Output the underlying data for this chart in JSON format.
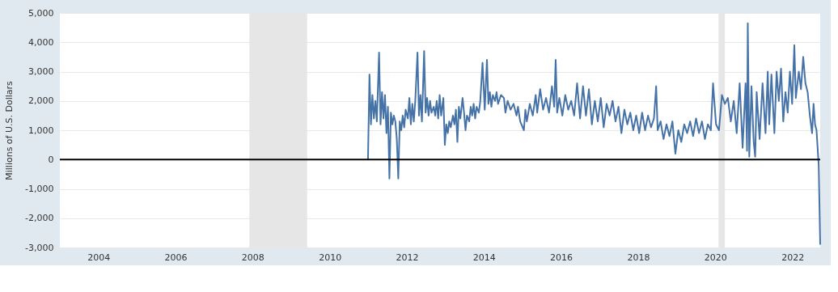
{
  "chart_data": {
    "type": "line",
    "ylabel": "Millions of U.S. Dollars",
    "xlim": [
      "2003-01-01",
      "2022-09-21"
    ],
    "xticks": [
      "2004",
      "2006",
      "2008",
      "2010",
      "2012",
      "2014",
      "2016",
      "2018",
      "2020",
      "2022"
    ],
    "ylim": [
      -3000,
      5000
    ],
    "yticks": [
      {
        "value": -3000,
        "label": "-3,000"
      },
      {
        "value": -2000,
        "label": "-2,000"
      },
      {
        "value": -1000,
        "label": "-1,000"
      },
      0,
      {
        "value": 1000,
        "label": "1,000"
      },
      {
        "value": 2000,
        "label": "2,000"
      },
      {
        "value": 3000,
        "label": "3,000"
      },
      {
        "value": 4000,
        "label": "4,000"
      },
      {
        "value": 5000,
        "label": "5,000"
      }
    ],
    "grid": "y",
    "bands": [
      {
        "axis": "x",
        "from": "2007-12-01",
        "to": "2009-06-01",
        "color": "#e6e6e6"
      },
      {
        "axis": "x",
        "from": "2020-02-01",
        "to": "2020-04-01",
        "color": "#e6e6e6"
      }
    ],
    "ref_lines": [
      {
        "axis": "y",
        "value": 0,
        "color": "#000000"
      }
    ],
    "series": [
      {
        "color": "#4572a7",
        "x": [
          "2010-12-29",
          "2011-01-12",
          "2011-01-26",
          "2011-02-09",
          "2011-02-23",
          "2011-03-09",
          "2011-03-23",
          "2011-04-13",
          "2011-04-27",
          "2011-05-11",
          "2011-05-25",
          "2011-06-08",
          "2011-06-22",
          "2011-07-06",
          "2011-07-20",
          "2011-08-03",
          "2011-08-17",
          "2011-08-31",
          "2011-09-14",
          "2011-09-28",
          "2011-10-12",
          "2011-10-26",
          "2011-11-09",
          "2011-11-23",
          "2011-12-07",
          "2011-12-21",
          "2012-01-11",
          "2012-01-25",
          "2012-02-08",
          "2012-02-22",
          "2012-03-07",
          "2012-03-21",
          "2012-04-11",
          "2012-04-25",
          "2012-05-09",
          "2012-05-23",
          "2012-06-13",
          "2012-06-27",
          "2012-07-11",
          "2012-07-25",
          "2012-08-08",
          "2012-08-22",
          "2012-09-12",
          "2012-09-26",
          "2012-10-10",
          "2012-10-24",
          "2012-11-07",
          "2012-11-21",
          "2012-12-12",
          "2012-12-26",
          "2013-01-09",
          "2013-01-23",
          "2013-02-06",
          "2013-02-20",
          "2013-03-13",
          "2013-03-27",
          "2013-04-10",
          "2013-04-24",
          "2013-05-08",
          "2013-05-22",
          "2013-06-12",
          "2013-06-26",
          "2013-07-10",
          "2013-07-24",
          "2013-08-14",
          "2013-08-28",
          "2013-09-11",
          "2013-09-25",
          "2013-10-09",
          "2013-10-23",
          "2013-11-13",
          "2013-11-27",
          "2013-12-18",
          "2014-01-08",
          "2014-01-29",
          "2014-02-12",
          "2014-02-26",
          "2014-03-12",
          "2014-03-26",
          "2014-04-16",
          "2014-04-30",
          "2014-05-14",
          "2014-06-11",
          "2014-07-09",
          "2014-07-23",
          "2014-08-13",
          "2014-09-10",
          "2014-10-08",
          "2014-11-05",
          "2014-11-19",
          "2014-12-10",
          "2015-01-14",
          "2015-01-28",
          "2015-02-11",
          "2015-03-11",
          "2015-04-08",
          "2015-05-06",
          "2015-05-20",
          "2015-06-17",
          "2015-07-15",
          "2015-08-12",
          "2015-09-09",
          "2015-10-07",
          "2015-10-28",
          "2015-11-11",
          "2015-11-25",
          "2015-12-16",
          "2016-01-13",
          "2016-02-10",
          "2016-03-09",
          "2016-04-06",
          "2016-05-04",
          "2016-06-01",
          "2016-06-29",
          "2016-07-27",
          "2016-08-24",
          "2016-09-21",
          "2016-10-19",
          "2016-11-16",
          "2016-12-14",
          "2017-01-11",
          "2017-02-08",
          "2017-03-08",
          "2017-04-05",
          "2017-05-03",
          "2017-05-31",
          "2017-06-28",
          "2017-07-26",
          "2017-08-23",
          "2017-09-20",
          "2017-10-18",
          "2017-11-15",
          "2017-12-13",
          "2018-01-10",
          "2018-02-07",
          "2018-03-07",
          "2018-04-04",
          "2018-05-02",
          "2018-05-30",
          "2018-06-20",
          "2018-07-04",
          "2018-08-01",
          "2018-08-29",
          "2018-09-26",
          "2018-10-24",
          "2018-11-21",
          "2018-12-19",
          "2019-01-16",
          "2019-02-13",
          "2019-03-13",
          "2019-04-10",
          "2019-05-08",
          "2019-06-05",
          "2019-07-03",
          "2019-07-31",
          "2019-08-28",
          "2019-09-25",
          "2019-10-23",
          "2019-11-20",
          "2019-12-11",
          "2020-01-08",
          "2020-02-05",
          "2020-03-04",
          "2020-04-01",
          "2020-04-29",
          "2020-05-27",
          "2020-06-24",
          "2020-07-22",
          "2020-08-19",
          "2020-09-16",
          "2020-10-14",
          "2020-10-28",
          "2020-11-04",
          "2020-11-18",
          "2020-12-09",
          "2020-12-30",
          "2021-01-13",
          "2021-01-27",
          "2021-02-24",
          "2021-03-24",
          "2021-04-21",
          "2021-05-12",
          "2021-05-26",
          "2021-06-16",
          "2021-07-14",
          "2021-08-04",
          "2021-08-25",
          "2021-09-15",
          "2021-10-06",
          "2021-10-27",
          "2021-11-17",
          "2021-12-08",
          "2021-12-29",
          "2022-01-19",
          "2022-02-02",
          "2022-03-02",
          "2022-03-23",
          "2022-04-13",
          "2022-05-04",
          "2022-05-25",
          "2022-06-15",
          "2022-07-06",
          "2022-07-20",
          "2022-08-03",
          "2022-08-17",
          "2022-09-07",
          "2022-09-21"
        ],
        "values": [
          0,
          2900,
          1200,
          2200,
          1400,
          2000,
          1300,
          3650,
          1200,
          2300,
          1400,
          2200,
          900,
          1800,
          -650,
          1600,
          1200,
          1500,
          1300,
          700,
          -650,
          1300,
          1000,
          1500,
          1100,
          1700,
          1400,
          2100,
          1200,
          1900,
          1300,
          2000,
          3650,
          1500,
          2200,
          1300,
          3700,
          1600,
          2100,
          1500,
          2000,
          1600,
          1800,
          1500,
          2000,
          1400,
          2200,
          1500,
          2100,
          500,
          1200,
          900,
          1300,
          1100,
          1500,
          1200,
          1700,
          600,
          1800,
          1400,
          2100,
          1600,
          1000,
          1500,
          1300,
          1800,
          1500,
          1900,
          1400,
          1800,
          1600,
          2000,
          3300,
          1700,
          3400,
          1900,
          2300,
          1800,
          2200,
          2000,
          2300,
          1900,
          2200,
          2100,
          1600,
          2000,
          1700,
          1900,
          1500,
          1800,
          1300,
          1000,
          1700,
          1300,
          1900,
          1500,
          2200,
          1600,
          2400,
          1700,
          2100,
          1600,
          2500,
          1800,
          3400,
          1600,
          2100,
          1500,
          2200,
          1700,
          2000,
          1500,
          2600,
          1400,
          2500,
          1500,
          2400,
          1200,
          2000,
          1300,
          2100,
          1100,
          1900,
          1500,
          2000,
          1300,
          1800,
          900,
          1700,
          1200,
          1600,
          1000,
          1500,
          900,
          1600,
          1000,
          1500,
          1100,
          1400,
          2500,
          1000,
          1300,
          700,
          1200,
          800,
          1300,
          200,
          1000,
          600,
          1200,
          900,
          1300,
          800,
          1400,
          900,
          1300,
          700,
          1200,
          1000,
          2600,
          1200,
          1000,
          2200,
          1900,
          2100,
          1300,
          2000,
          900,
          2600,
          400,
          2600,
          300,
          4650,
          100,
          2500,
          600,
          100,
          2300,
          700,
          2600,
          900,
          3000,
          1200,
          2900,
          900,
          3000,
          2000,
          3100,
          1300,
          2300,
          1600,
          3000,
          1900,
          3900,
          2100,
          3000,
          2400,
          3500,
          2600,
          2300,
          1500,
          900,
          1900,
          1200,
          1000,
          -200,
          -2900
        ]
      }
    ]
  }
}
